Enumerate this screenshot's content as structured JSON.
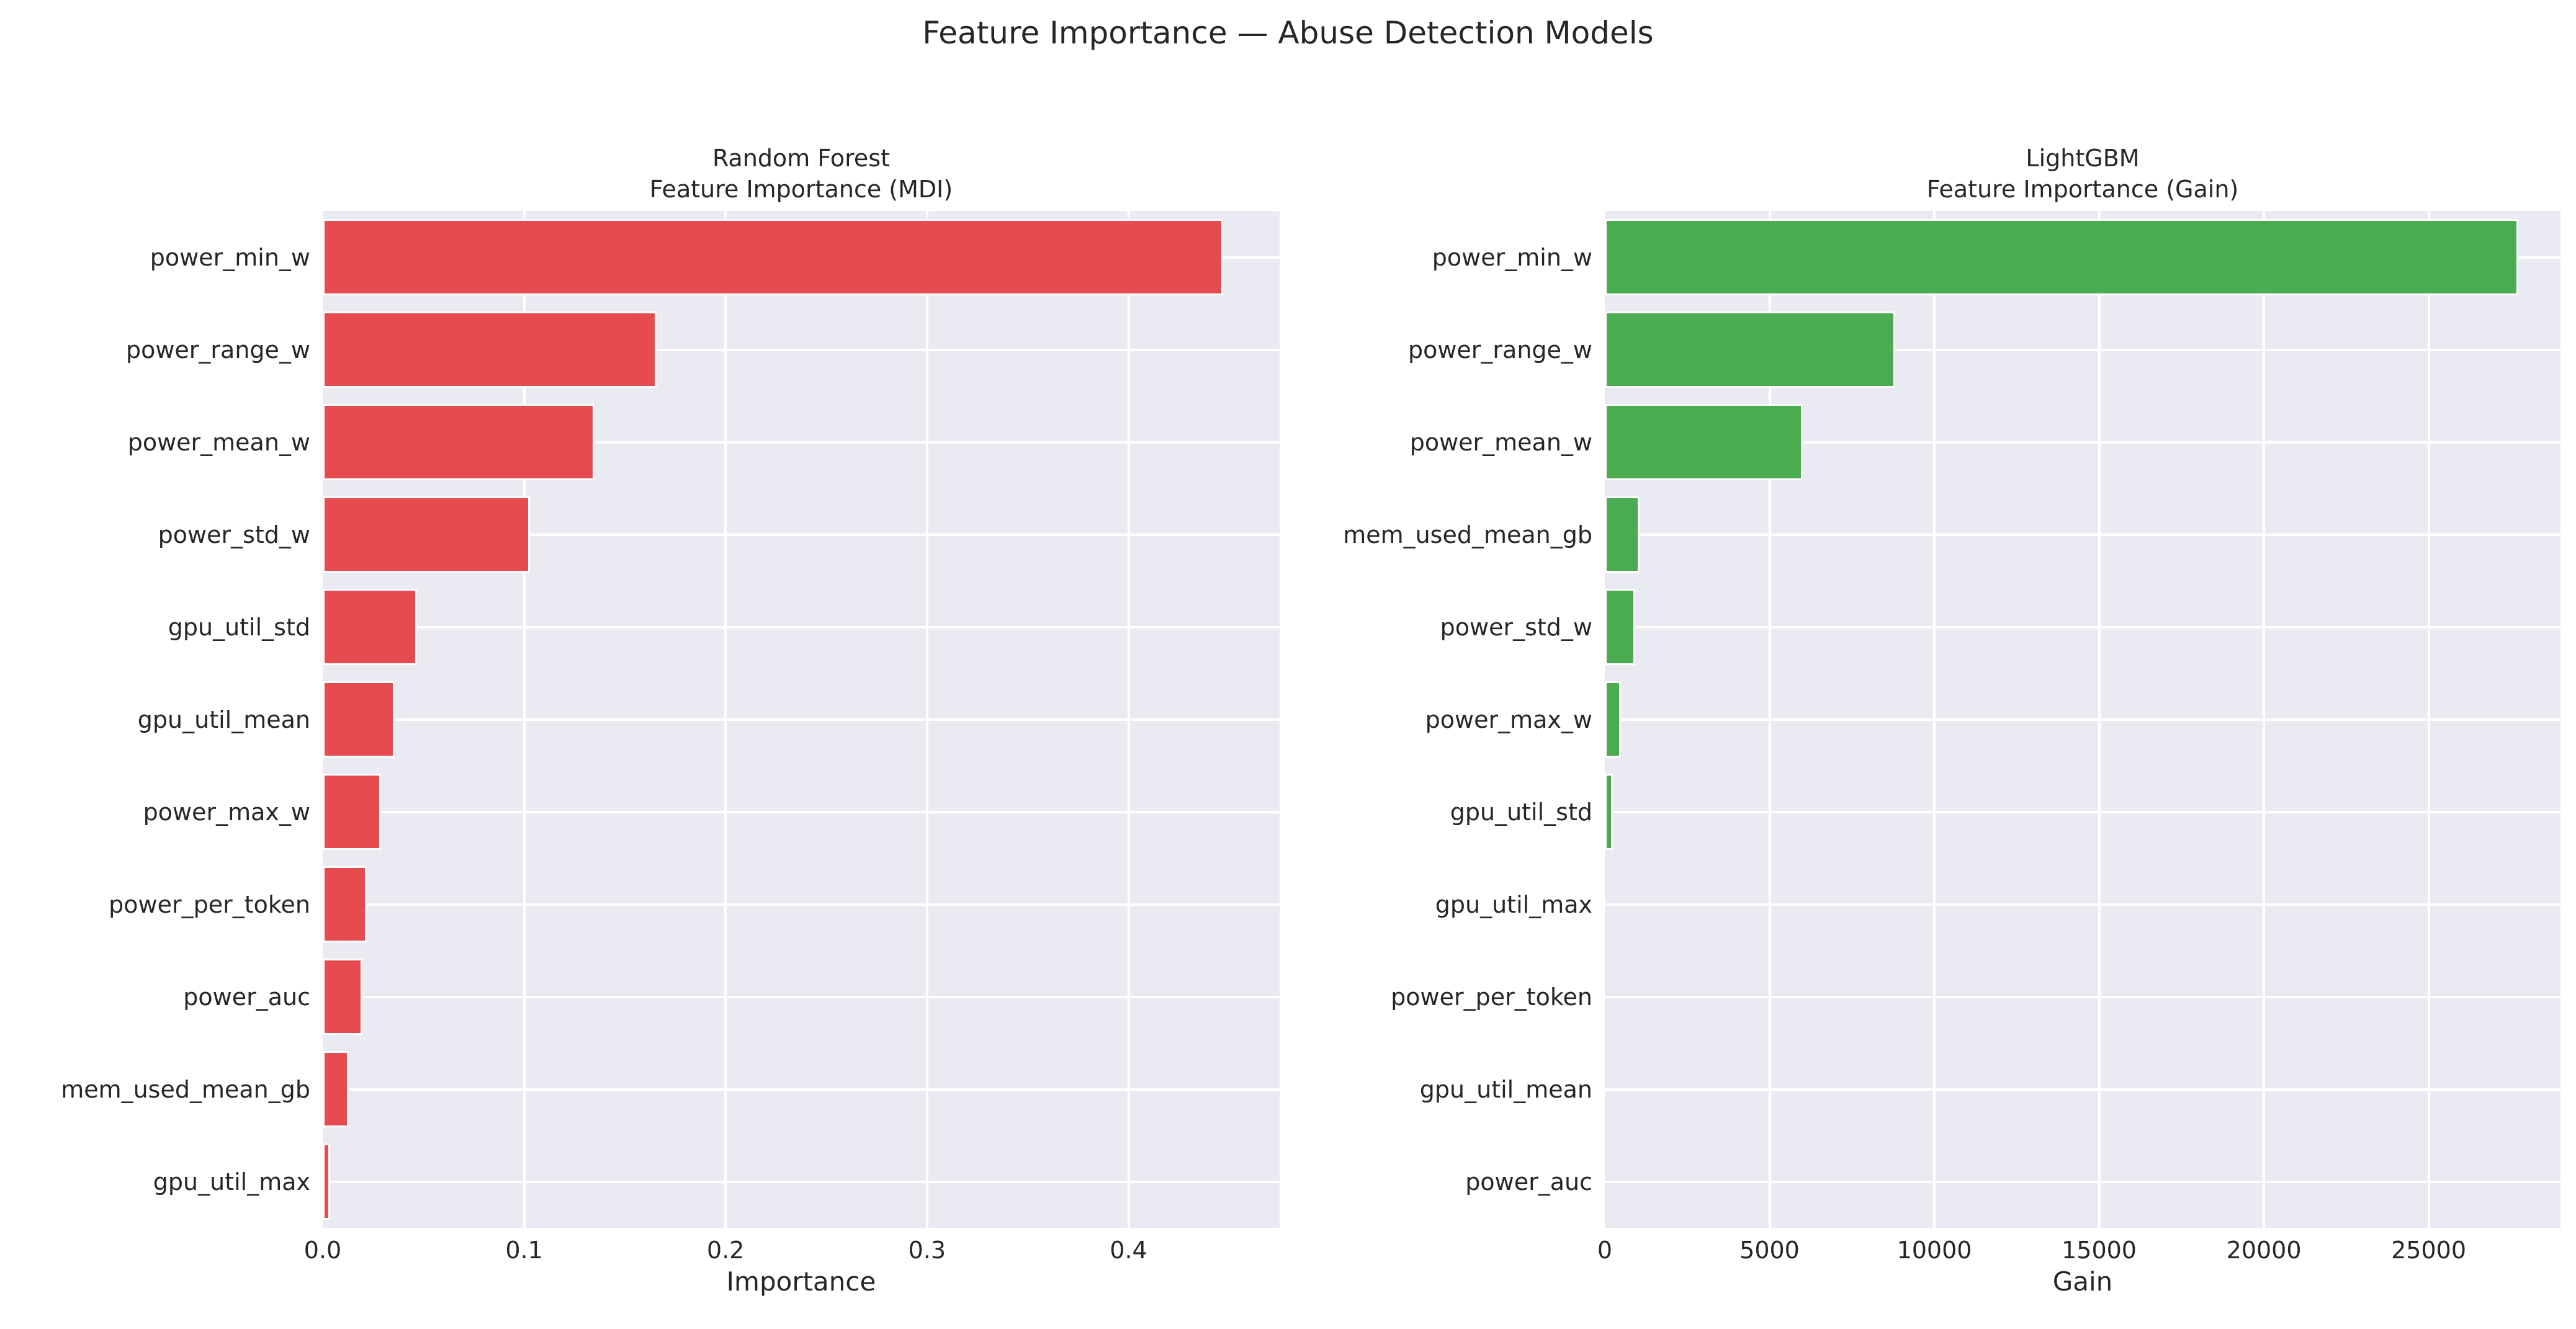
{
  "suptitle": "Feature Importance — Abuse Detection Models",
  "colors": {
    "rf_bar": "#e64c4f",
    "lgbm_bar": "#4bab50",
    "axes_background": "#eaeaf2",
    "gridline": "#ffffff",
    "text": "#262626",
    "figure_background": "#ffffff"
  },
  "chart_data": [
    {
      "type": "bar",
      "orientation": "horizontal",
      "title": "Random Forest\nFeature Importance (MDI)",
      "xlabel": "Importance",
      "bar_color": "#e64c4f",
      "grid": true,
      "xlim": [
        0,
        0.475
      ],
      "xticks": [
        0.0,
        0.1,
        0.2,
        0.3,
        0.4
      ],
      "xtick_labels": [
        "0.0",
        "0.1",
        "0.2",
        "0.3",
        "0.4"
      ],
      "categories": [
        "power_min_w",
        "power_range_w",
        "power_mean_w",
        "power_std_w",
        "gpu_util_std",
        "gpu_util_mean",
        "power_max_w",
        "power_per_token",
        "power_auc",
        "mem_used_mean_gb",
        "gpu_util_max"
      ],
      "values": [
        0.445,
        0.164,
        0.133,
        0.101,
        0.045,
        0.034,
        0.027,
        0.02,
        0.018,
        0.011,
        0.002
      ]
    },
    {
      "type": "bar",
      "orientation": "horizontal",
      "title": "LightGBM\nFeature Importance (Gain)",
      "xlabel": "Gain",
      "bar_color": "#4bab50",
      "grid": true,
      "xlim": [
        0,
        29000
      ],
      "xticks": [
        0,
        5000,
        10000,
        15000,
        20000,
        25000
      ],
      "xtick_labels": [
        "0",
        "5000",
        "10000",
        "15000",
        "20000",
        "25000"
      ],
      "categories": [
        "power_min_w",
        "power_range_w",
        "power_mean_w",
        "mem_used_mean_gb",
        "power_std_w",
        "power_max_w",
        "gpu_util_std",
        "gpu_util_max",
        "power_per_token",
        "gpu_util_mean",
        "power_auc"
      ],
      "values": [
        27600,
        8700,
        5900,
        940,
        810,
        370,
        130,
        0,
        0,
        0,
        0
      ]
    }
  ]
}
